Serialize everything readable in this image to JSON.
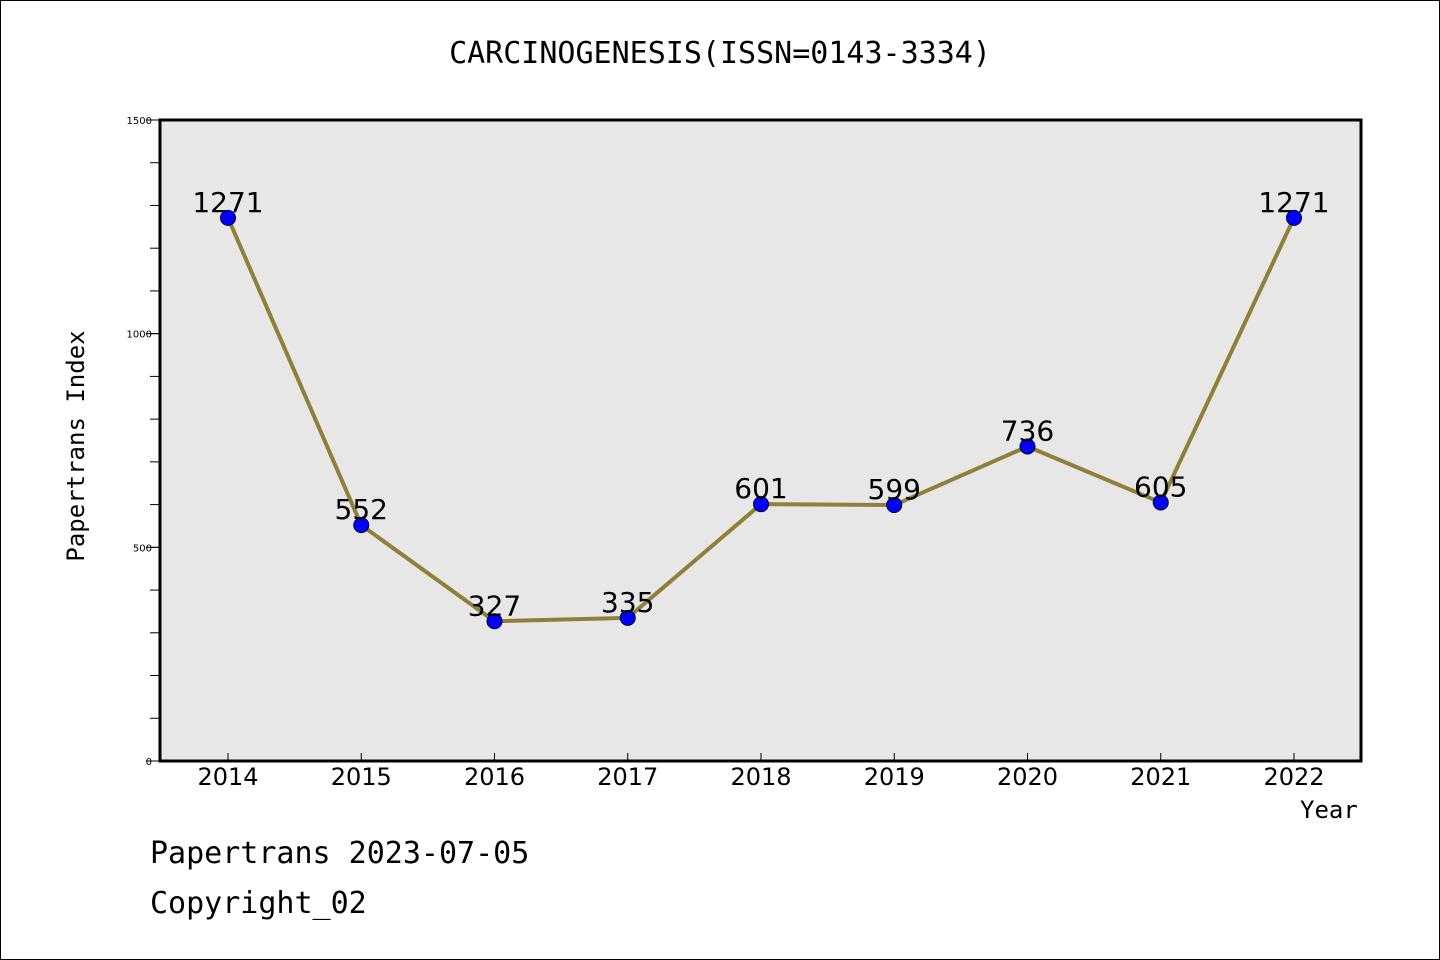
{
  "chart_data": {
    "type": "line",
    "title": "CARCINOGENESIS(ISSN=0143-3334)",
    "xlabel": "Year",
    "ylabel": "Papertrans Index",
    "categories": [
      "2014",
      "2015",
      "2016",
      "2017",
      "2018",
      "2019",
      "2020",
      "2021",
      "2022"
    ],
    "values": [
      1271,
      552,
      327,
      335,
      601,
      599,
      736,
      605,
      1271
    ],
    "data_labels": [
      "1271",
      "552",
      "327",
      "335",
      "601",
      "599",
      "736",
      "605",
      "1271"
    ],
    "ylim": [
      0,
      1500
    ],
    "yticks": [
      "0",
      "500",
      "1000",
      "1500"
    ],
    "colors": {
      "plot_background": "#e7e7e7",
      "line": "#8f7f38",
      "marker": "#0000ff"
    },
    "grid": false,
    "legend": "none"
  },
  "footer": {
    "line1": "Papertrans 2023-07-05",
    "line2": "Copyright_02"
  }
}
